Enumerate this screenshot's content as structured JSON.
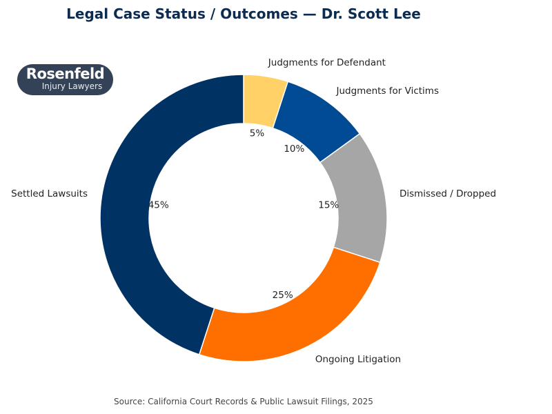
{
  "chart_data": {
    "type": "pie",
    "donut": true,
    "title": "Legal Case Status / Outcomes — Dr. Scott Lee",
    "categories": [
      "Judgments for Defendant",
      "Judgments for Victims",
      "Dismissed / Dropped",
      "Ongoing Litigation",
      "Settled Lawsuits"
    ],
    "values": [
      5,
      10,
      15,
      25,
      45
    ],
    "value_labels": [
      "5%",
      "10%",
      "15%",
      "25%",
      "45%"
    ],
    "colors": [
      "#ffd166",
      "#004b93",
      "#a6a6a6",
      "#ff6f00",
      "#003263"
    ],
    "source": "Source: California Court Records & Public Lawsuit Filings, 2025"
  },
  "logo": {
    "line1": "Rosenfeld",
    "line2": "Injury Lawyers"
  }
}
